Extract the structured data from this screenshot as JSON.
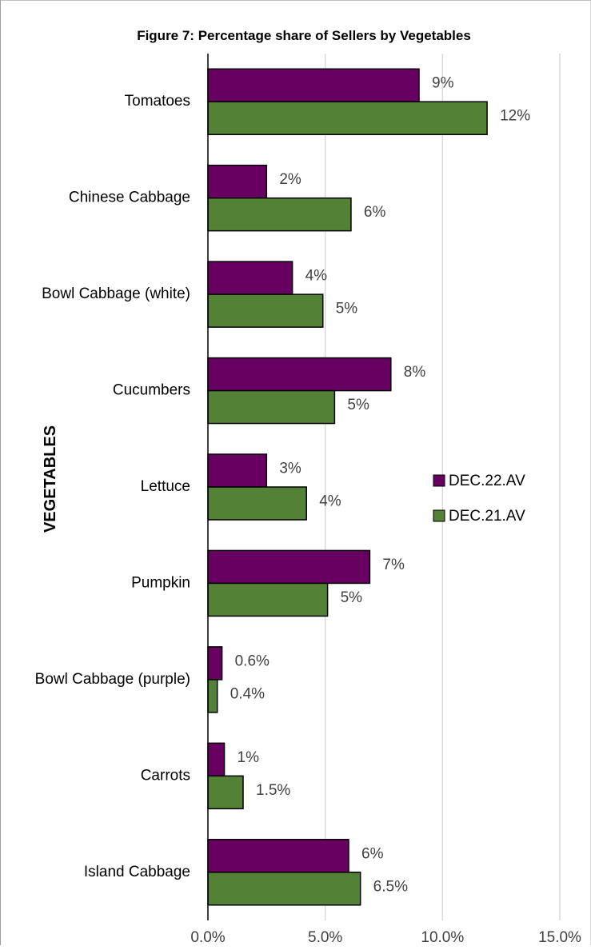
{
  "chart_data": {
    "type": "bar",
    "orientation": "horizontal",
    "title": "Figure 7: Percentage share of Sellers by Vegetables",
    "ylabel": "VEGETABLES",
    "xlabel": "",
    "xlim": [
      0,
      15
    ],
    "x_ticks": [
      0,
      5,
      10,
      15
    ],
    "x_tick_labels": [
      "0.0%",
      "5.0%",
      "10.0%",
      "15.0%"
    ],
    "grid": true,
    "legend_position": "right",
    "categories": [
      "Tomatoes",
      "Chinese Cabbage",
      "Bowl Cabbage (white)",
      "Cucumbers",
      "Lettuce",
      "Pumpkin",
      "Bowl Cabbage (purple)",
      "Carrots",
      "Island Cabbage"
    ],
    "series": [
      {
        "name": "DEC.22.AV",
        "color": "#680062",
        "values": [
          9.0,
          2.5,
          3.6,
          7.8,
          2.5,
          6.9,
          0.6,
          0.7,
          6.0
        ],
        "labels": [
          "9%",
          "2%",
          "4%",
          "8%",
          "3%",
          "7%",
          "0.6%",
          "1%",
          "6%"
        ]
      },
      {
        "name": "DEC.21.AV",
        "color": "#538135",
        "values": [
          11.9,
          6.1,
          4.9,
          5.4,
          4.2,
          5.1,
          0.4,
          1.5,
          6.5
        ],
        "labels": [
          "12%",
          "6%",
          "5%",
          "5%",
          "4%",
          "5%",
          "0.4%",
          "1.5%",
          "6.5%"
        ]
      }
    ]
  }
}
